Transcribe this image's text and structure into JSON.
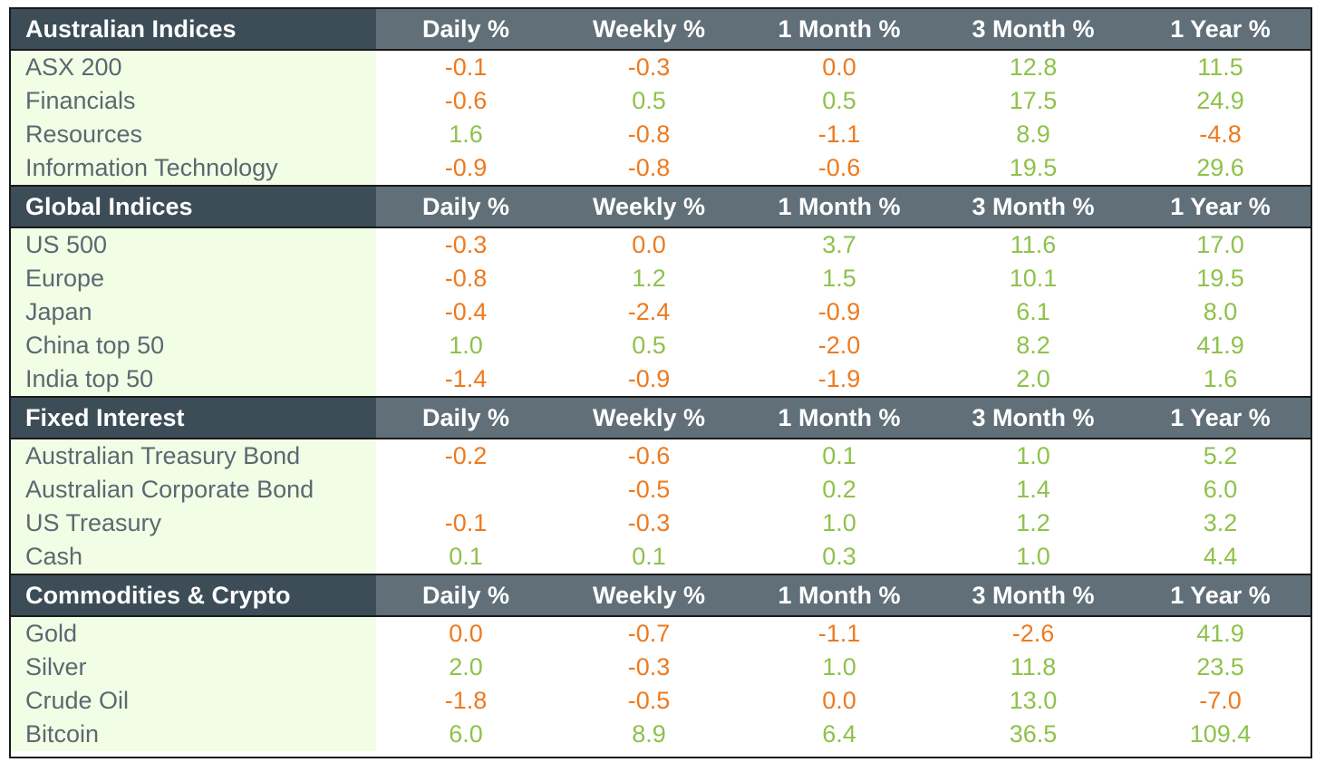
{
  "columns": [
    "Daily %",
    "Weekly %",
    "1 Month %",
    "3 Month %",
    "1 Year %"
  ],
  "colors": {
    "negative": "#ee7a1e",
    "positive": "#8ec24a",
    "section_header": "#3c4d58",
    "column_header": "#617078",
    "label_bg": "#f2fde6"
  },
  "sections": [
    {
      "title": "Australian Indices",
      "rows": [
        {
          "name": "ASX 200",
          "values": [
            "-0.1",
            "-0.3",
            "0.0",
            "12.8",
            "11.5"
          ],
          "tones": [
            "neg",
            "neg",
            "neg",
            "pos",
            "pos"
          ]
        },
        {
          "name": "Financials",
          "values": [
            "-0.6",
            "0.5",
            "0.5",
            "17.5",
            "24.9"
          ],
          "tones": [
            "neg",
            "pos",
            "pos",
            "pos",
            "pos"
          ]
        },
        {
          "name": "Resources",
          "values": [
            "1.6",
            "-0.8",
            "-1.1",
            "8.9",
            "-4.8"
          ],
          "tones": [
            "pos",
            "neg",
            "neg",
            "pos",
            "neg"
          ]
        },
        {
          "name": "Information Technology",
          "values": [
            "-0.9",
            "-0.8",
            "-0.6",
            "19.5",
            "29.6"
          ],
          "tones": [
            "neg",
            "neg",
            "neg",
            "pos",
            "pos"
          ]
        }
      ]
    },
    {
      "title": "Global Indices",
      "rows": [
        {
          "name": "US 500",
          "values": [
            "-0.3",
            "0.0",
            "3.7",
            "11.6",
            "17.0"
          ],
          "tones": [
            "neg",
            "neg",
            "pos",
            "pos",
            "pos"
          ]
        },
        {
          "name": "Europe",
          "values": [
            "-0.8",
            "1.2",
            "1.5",
            "10.1",
            "19.5"
          ],
          "tones": [
            "neg",
            "pos",
            "pos",
            "pos",
            "pos"
          ]
        },
        {
          "name": "Japan",
          "values": [
            "-0.4",
            "-2.4",
            "-0.9",
            "6.1",
            "8.0"
          ],
          "tones": [
            "neg",
            "neg",
            "neg",
            "pos",
            "pos"
          ]
        },
        {
          "name": "China top 50",
          "values": [
            "1.0",
            "0.5",
            "-2.0",
            "8.2",
            "41.9"
          ],
          "tones": [
            "pos",
            "pos",
            "neg",
            "pos",
            "pos"
          ]
        },
        {
          "name": "India top 50",
          "values": [
            "-1.4",
            "-0.9",
            "-1.9",
            "2.0",
            "1.6"
          ],
          "tones": [
            "neg",
            "neg",
            "neg",
            "pos",
            "pos"
          ]
        }
      ]
    },
    {
      "title": "Fixed Interest",
      "rows": [
        {
          "name": "Australian Treasury Bond",
          "values": [
            "-0.2",
            "-0.6",
            "0.1",
            "1.0",
            "5.2"
          ],
          "tones": [
            "neg",
            "neg",
            "pos",
            "pos",
            "pos"
          ]
        },
        {
          "name": "Australian Corporate Bond",
          "values": [
            "",
            "-0.5",
            "0.2",
            "1.4",
            "6.0"
          ],
          "tones": [
            "neg",
            "neg",
            "pos",
            "pos",
            "pos"
          ]
        },
        {
          "name": "US Treasury",
          "values": [
            "-0.1",
            "-0.3",
            "1.0",
            "1.2",
            "3.2"
          ],
          "tones": [
            "neg",
            "neg",
            "pos",
            "pos",
            "pos"
          ]
        },
        {
          "name": "Cash",
          "values": [
            "0.1",
            "0.1",
            "0.3",
            "1.0",
            "4.4"
          ],
          "tones": [
            "pos",
            "pos",
            "pos",
            "pos",
            "pos"
          ]
        }
      ]
    },
    {
      "title": "Commodities & Crypto",
      "rows": [
        {
          "name": "Gold",
          "values": [
            "0.0",
            "-0.7",
            "-1.1",
            "-2.6",
            "41.9"
          ],
          "tones": [
            "neg",
            "neg",
            "neg",
            "neg",
            "pos"
          ]
        },
        {
          "name": "Silver",
          "values": [
            "2.0",
            "-0.3",
            "1.0",
            "11.8",
            "23.5"
          ],
          "tones": [
            "pos",
            "neg",
            "pos",
            "pos",
            "pos"
          ]
        },
        {
          "name": "Crude Oil",
          "values": [
            "-1.8",
            "-0.5",
            "0.0",
            "13.0",
            "-7.0"
          ],
          "tones": [
            "neg",
            "neg",
            "neg",
            "pos",
            "neg"
          ]
        },
        {
          "name": "Bitcoin",
          "values": [
            "6.0",
            "8.9",
            "6.4",
            "36.5",
            "109.4"
          ],
          "tones": [
            "pos",
            "pos",
            "pos",
            "pos",
            "pos"
          ]
        }
      ]
    }
  ]
}
